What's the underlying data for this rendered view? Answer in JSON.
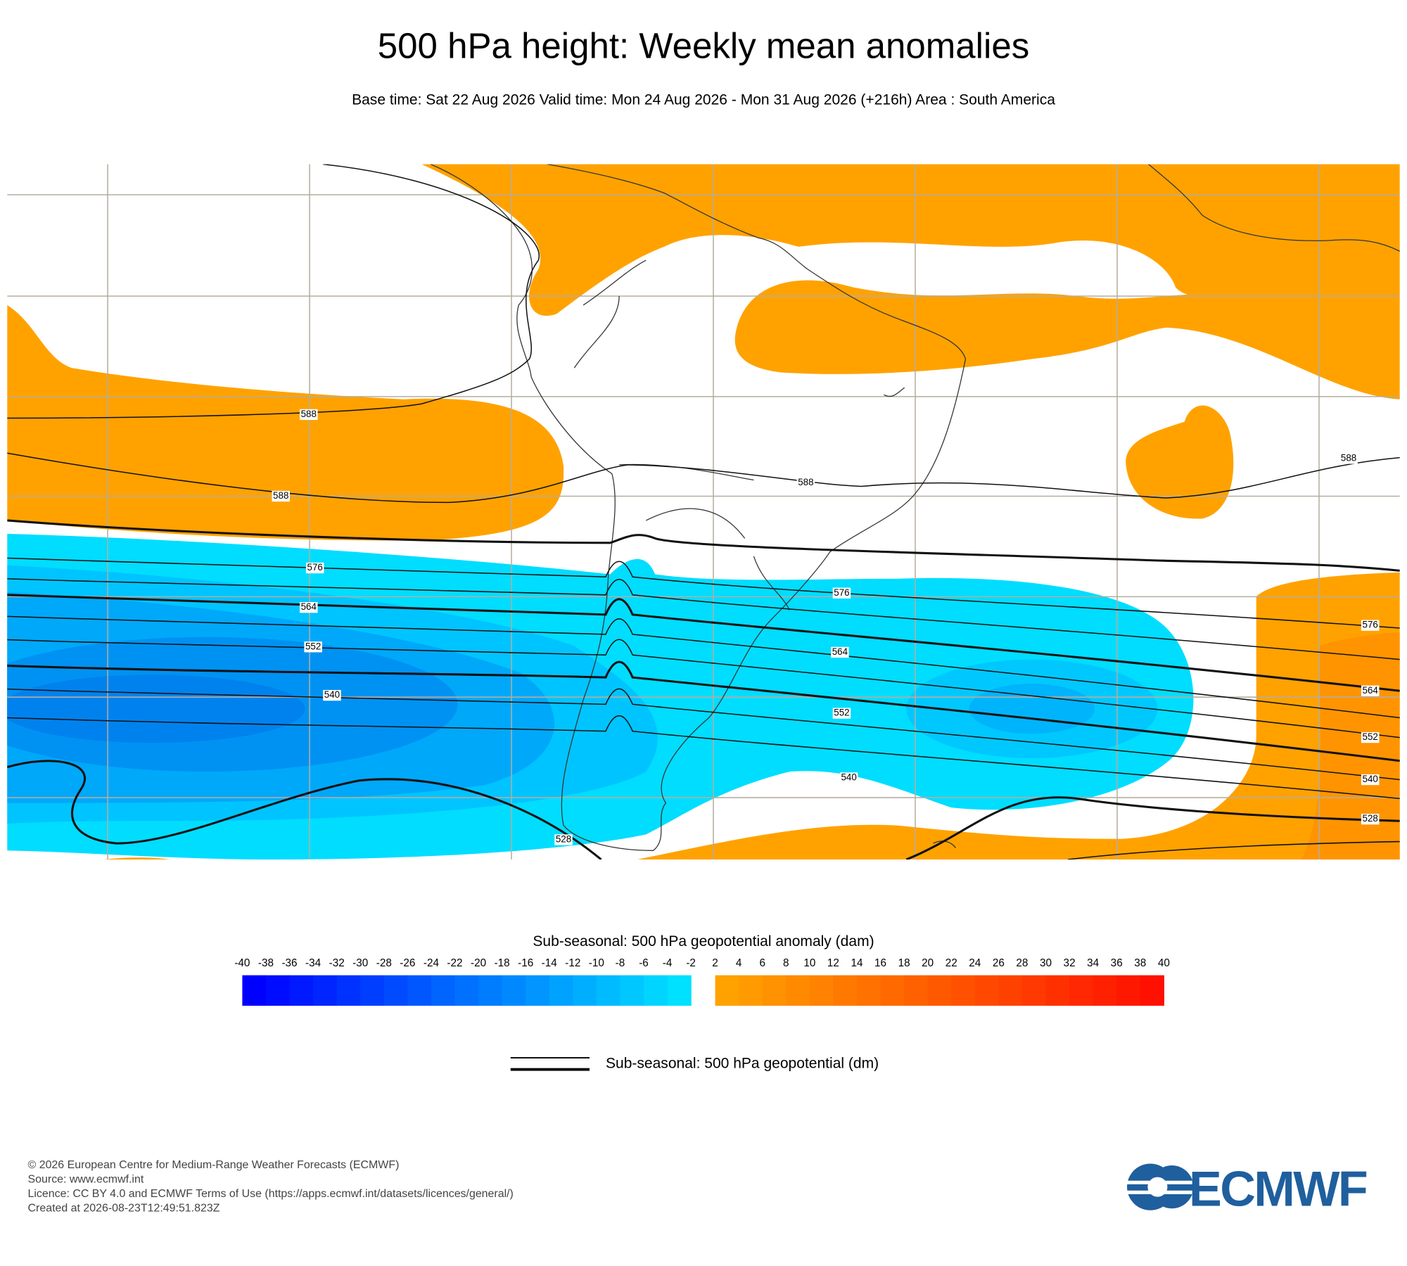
{
  "header": {
    "title": "500 hPa height: Weekly mean anomalies",
    "subtitle": "Base time: Sat 22 Aug 2026 Valid time: Mon 24 Aug 2026 - Mon 31 Aug 2026 (+216h) Area : South America"
  },
  "map": {
    "contour_labels": [
      588,
      588,
      588,
      588,
      576,
      576,
      576,
      564,
      564,
      564,
      552,
      552,
      552,
      540,
      540,
      540,
      528,
      528
    ]
  },
  "colorbar": {
    "title": "Sub-seasonal: 500 hPa geopotential anomaly (dam)",
    "negative_ticks": [
      -40,
      -38,
      -36,
      -34,
      -32,
      -30,
      -28,
      -26,
      -24,
      -22,
      -20,
      -18,
      -16,
      -14,
      -12,
      -10,
      -8,
      -6,
      -4,
      -2
    ],
    "positive_ticks": [
      2,
      4,
      6,
      8,
      10,
      12,
      14,
      16,
      18,
      20,
      22,
      24,
      26,
      28,
      30,
      32,
      34,
      36,
      38,
      40
    ]
  },
  "legend": {
    "label": "Sub-seasonal: 500 hPa geopotential (dm)"
  },
  "footer": {
    "lines": [
      "© 2026 European Centre for Medium-Range Weather Forecasts (ECMWF)",
      "Source: www.ecmwf.int",
      "Licence: CC BY 4.0 and ECMWF Terms of Use (https://apps.ecmwf.int/datasets/licences/general/)",
      "Created at 2026-08-23T12:49:51.823Z"
    ],
    "logo": "ECMWF"
  }
}
